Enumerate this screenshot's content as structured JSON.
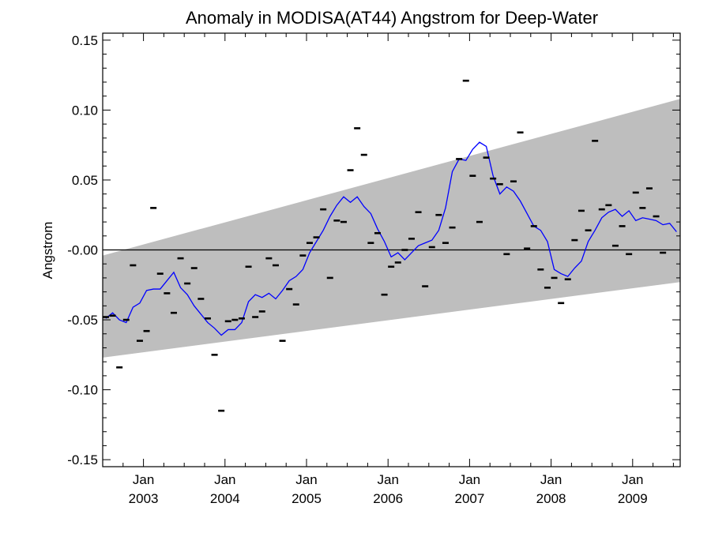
{
  "chart_data": {
    "type": "scatter",
    "title": "Anomaly in MODISA(AT44) Angstrom for Deep-Water",
    "xlabel": "",
    "ylabel": "Angstrom",
    "xlim": [
      "2002-07-01",
      "2009-08-01"
    ],
    "ylim": [
      -0.155,
      0.155
    ],
    "y_ticks": [
      -0.15,
      -0.1,
      -0.05,
      0.0,
      0.05,
      0.1,
      0.15
    ],
    "y_tick_labels": [
      "-0.15",
      "-0.10",
      "-0.05",
      "-0.00",
      "0.05",
      "0.10",
      "0.15"
    ],
    "x_ticks": [
      {
        "month": "Jan",
        "year": "2003",
        "date": "2003-01-01"
      },
      {
        "month": "Jan",
        "year": "2004",
        "date": "2004-01-01"
      },
      {
        "month": "Jan",
        "year": "2005",
        "date": "2005-01-01"
      },
      {
        "month": "Jan",
        "year": "2006",
        "date": "2006-01-01"
      },
      {
        "month": "Jan",
        "year": "2007",
        "date": "2007-01-01"
      },
      {
        "month": "Jan",
        "year": "2008",
        "date": "2008-01-01"
      },
      {
        "month": "Jan",
        "year": "2009",
        "date": "2009-01-01"
      }
    ],
    "zero_line": 0,
    "band": {
      "x": [
        "2002-07-01",
        "2009-08-01"
      ],
      "lower": [
        -0.077,
        -0.023
      ],
      "upper": [
        -0.004,
        0.108
      ],
      "color": "#bebebe"
    },
    "monthly_anomaly": {
      "marker": "dash",
      "color": "#000000",
      "points": [
        [
          "2002-07",
          -0.048
        ],
        [
          "2002-08",
          -0.047
        ],
        [
          "2002-09",
          -0.084
        ],
        [
          "2002-10",
          -0.05
        ],
        [
          "2002-11",
          -0.011
        ],
        [
          "2002-12",
          -0.065
        ],
        [
          "2003-01",
          -0.058
        ],
        [
          "2003-02",
          0.03
        ],
        [
          "2003-03",
          -0.017
        ],
        [
          "2003-04",
          -0.031
        ],
        [
          "2003-05",
          -0.045
        ],
        [
          "2003-06",
          -0.006
        ],
        [
          "2003-07",
          -0.024
        ],
        [
          "2003-08",
          -0.013
        ],
        [
          "2003-09",
          -0.035
        ],
        [
          "2003-10",
          -0.049
        ],
        [
          "2003-11",
          -0.075
        ],
        [
          "2003-12",
          -0.115
        ],
        [
          "2004-01",
          -0.051
        ],
        [
          "2004-02",
          -0.05
        ],
        [
          "2004-03",
          -0.049
        ],
        [
          "2004-04",
          -0.012
        ],
        [
          "2004-05",
          -0.048
        ],
        [
          "2004-06",
          -0.044
        ],
        [
          "2004-07",
          -0.006
        ],
        [
          "2004-08",
          -0.011
        ],
        [
          "2004-09",
          -0.065
        ],
        [
          "2004-10",
          -0.028
        ],
        [
          "2004-11",
          -0.039
        ],
        [
          "2004-12",
          -0.004
        ],
        [
          "2005-01",
          0.005
        ],
        [
          "2005-02",
          0.009
        ],
        [
          "2005-03",
          0.029
        ],
        [
          "2005-04",
          -0.02
        ],
        [
          "2005-05",
          0.021
        ],
        [
          "2005-06",
          0.02
        ],
        [
          "2005-07",
          0.057
        ],
        [
          "2005-08",
          0.087
        ],
        [
          "2005-09",
          0.068
        ],
        [
          "2005-10",
          0.005
        ],
        [
          "2005-11",
          0.012
        ],
        [
          "2005-12",
          -0.032
        ],
        [
          "2006-01",
          -0.012
        ],
        [
          "2006-02",
          -0.009
        ],
        [
          "2006-03",
          0.0
        ],
        [
          "2006-04",
          0.008
        ],
        [
          "2006-05",
          0.027
        ],
        [
          "2006-06",
          -0.026
        ],
        [
          "2006-07",
          0.002
        ],
        [
          "2006-08",
          0.025
        ],
        [
          "2006-09",
          0.005
        ],
        [
          "2006-10",
          0.016
        ],
        [
          "2006-11",
          0.065
        ],
        [
          "2006-12",
          0.121
        ],
        [
          "2007-01",
          0.053
        ],
        [
          "2007-02",
          0.02
        ],
        [
          "2007-03",
          0.066
        ],
        [
          "2007-04",
          0.051
        ],
        [
          "2007-05",
          0.047
        ],
        [
          "2007-06",
          -0.003
        ],
        [
          "2007-07",
          0.049
        ],
        [
          "2007-08",
          0.084
        ],
        [
          "2007-09",
          0.001
        ],
        [
          "2007-10",
          0.017
        ],
        [
          "2007-11",
          -0.014
        ],
        [
          "2007-12",
          -0.027
        ],
        [
          "2008-01",
          -0.02
        ],
        [
          "2008-02",
          -0.038
        ],
        [
          "2008-03",
          -0.021
        ],
        [
          "2008-04",
          0.007
        ],
        [
          "2008-05",
          0.028
        ],
        [
          "2008-06",
          0.014
        ],
        [
          "2008-07",
          0.078
        ],
        [
          "2008-08",
          0.029
        ],
        [
          "2008-09",
          0.032
        ],
        [
          "2008-10",
          0.003
        ],
        [
          "2008-11",
          0.017
        ],
        [
          "2008-12",
          -0.003
        ],
        [
          "2009-01",
          0.041
        ],
        [
          "2009-02",
          0.03
        ],
        [
          "2009-03",
          0.044
        ],
        [
          "2009-04",
          0.024
        ],
        [
          "2009-05",
          -0.002
        ]
      ]
    },
    "smoothed": {
      "color": "#0000ff",
      "points": [
        [
          "2002-07",
          -0.049
        ],
        [
          "2002-08",
          -0.045
        ],
        [
          "2002-09",
          -0.05
        ],
        [
          "2002-10",
          -0.052
        ],
        [
          "2002-11",
          -0.041
        ],
        [
          "2002-12",
          -0.038
        ],
        [
          "2003-01",
          -0.029
        ],
        [
          "2003-02",
          -0.028
        ],
        [
          "2003-03",
          -0.028
        ],
        [
          "2003-04",
          -0.022
        ],
        [
          "2003-05",
          -0.016
        ],
        [
          "2003-06",
          -0.027
        ],
        [
          "2003-07",
          -0.032
        ],
        [
          "2003-08",
          -0.04
        ],
        [
          "2003-09",
          -0.046
        ],
        [
          "2003-10",
          -0.052
        ],
        [
          "2003-11",
          -0.056
        ],
        [
          "2003-12",
          -0.061
        ],
        [
          "2004-01",
          -0.057
        ],
        [
          "2004-02",
          -0.057
        ],
        [
          "2004-03",
          -0.052
        ],
        [
          "2004-04",
          -0.037
        ],
        [
          "2004-05",
          -0.032
        ],
        [
          "2004-06",
          -0.034
        ],
        [
          "2004-07",
          -0.031
        ],
        [
          "2004-08",
          -0.035
        ],
        [
          "2004-09",
          -0.029
        ],
        [
          "2004-10",
          -0.022
        ],
        [
          "2004-11",
          -0.019
        ],
        [
          "2004-12",
          -0.014
        ],
        [
          "2005-01",
          -0.002
        ],
        [
          "2005-02",
          0.006
        ],
        [
          "2005-03",
          0.014
        ],
        [
          "2005-04",
          0.024
        ],
        [
          "2005-05",
          0.032
        ],
        [
          "2005-06",
          0.038
        ],
        [
          "2005-07",
          0.034
        ],
        [
          "2005-08",
          0.038
        ],
        [
          "2005-09",
          0.031
        ],
        [
          "2005-10",
          0.026
        ],
        [
          "2005-11",
          0.015
        ],
        [
          "2005-12",
          0.006
        ],
        [
          "2006-01",
          -0.005
        ],
        [
          "2006-02",
          -0.002
        ],
        [
          "2006-03",
          -0.007
        ],
        [
          "2006-04",
          -0.002
        ],
        [
          "2006-05",
          0.003
        ],
        [
          "2006-06",
          0.005
        ],
        [
          "2006-07",
          0.007
        ],
        [
          "2006-08",
          0.014
        ],
        [
          "2006-09",
          0.03
        ],
        [
          "2006-10",
          0.056
        ],
        [
          "2006-11",
          0.065
        ],
        [
          "2006-12",
          0.064
        ],
        [
          "2007-01",
          0.072
        ],
        [
          "2007-02",
          0.077
        ],
        [
          "2007-03",
          0.074
        ],
        [
          "2007-04",
          0.053
        ],
        [
          "2007-05",
          0.04
        ],
        [
          "2007-06",
          0.045
        ],
        [
          "2007-07",
          0.042
        ],
        [
          "2007-08",
          0.035
        ],
        [
          "2007-09",
          0.026
        ],
        [
          "2007-10",
          0.017
        ],
        [
          "2007-11",
          0.014
        ],
        [
          "2007-12",
          0.006
        ],
        [
          "2008-01",
          -0.014
        ],
        [
          "2008-02",
          -0.017
        ],
        [
          "2008-03",
          -0.019
        ],
        [
          "2008-04",
          -0.013
        ],
        [
          "2008-05",
          -0.008
        ],
        [
          "2008-06",
          0.006
        ],
        [
          "2008-07",
          0.014
        ],
        [
          "2008-08",
          0.023
        ],
        [
          "2008-09",
          0.027
        ],
        [
          "2008-10",
          0.029
        ],
        [
          "2008-11",
          0.024
        ],
        [
          "2008-12",
          0.028
        ],
        [
          "2009-01",
          0.021
        ],
        [
          "2009-02",
          0.023
        ],
        [
          "2009-03",
          0.022
        ],
        [
          "2009-04",
          0.021
        ],
        [
          "2009-05",
          0.018
        ],
        [
          "2009-06",
          0.019
        ],
        [
          "2009-07",
          0.013
        ]
      ]
    },
    "grid": false,
    "legend": "none"
  }
}
